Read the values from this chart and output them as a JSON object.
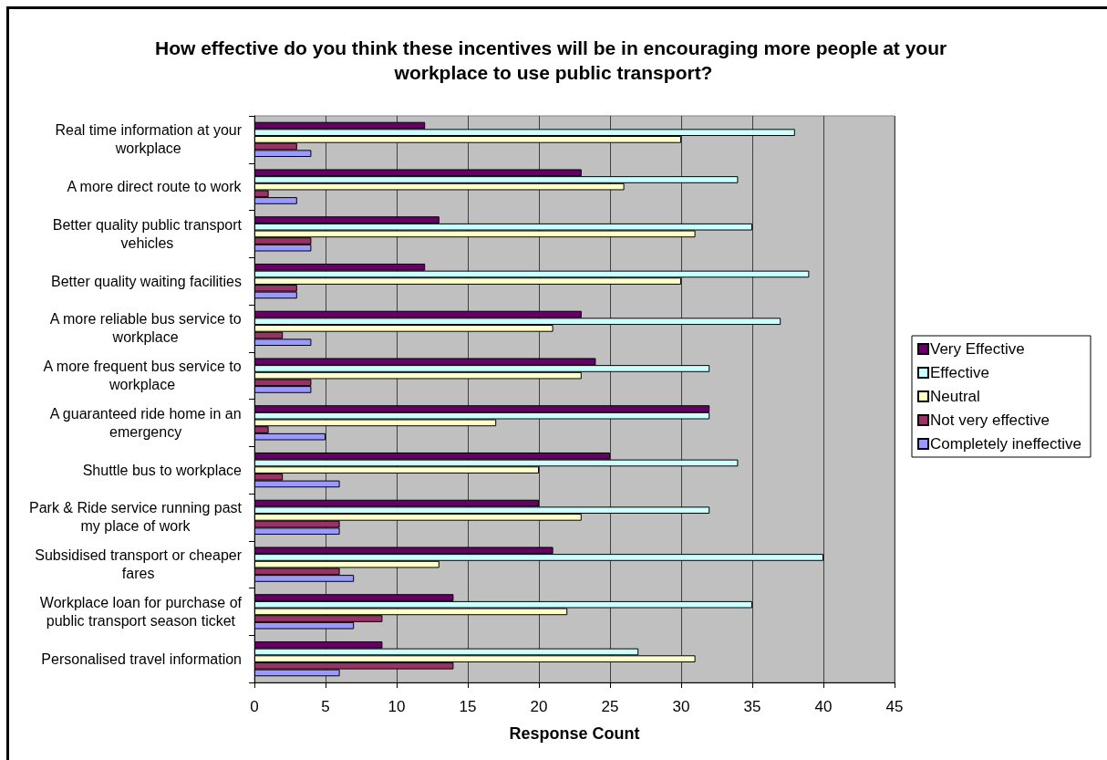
{
  "chart_data": {
    "type": "bar",
    "orientation": "horizontal",
    "title": "How effective do you think these incentives will be in encouraging more people at your workplace to use public transport?",
    "xlabel": "Response Count",
    "categories": [
      "Real time information at your workplace",
      "A more direct route to work",
      "Better quality public transport vehicles",
      "Better quality waiting facilities",
      "A more reliable bus service to workplace",
      "A more frequent bus service to workplace",
      "A guaranteed ride home in an emergency",
      "Shuttle bus to workplace",
      "Park & Ride service running past my place of work",
      "Subsidised transport or cheaper fares",
      "Workplace loan for purchase of public transport season ticket",
      "Personalised travel information"
    ],
    "series": [
      {
        "name": "Very Effective",
        "color": "#660066",
        "values": [
          12,
          23,
          13,
          12,
          23,
          24,
          32,
          25,
          20,
          21,
          14,
          9
        ]
      },
      {
        "name": "Effective",
        "color": "#ccffff",
        "values": [
          38,
          34,
          35,
          39,
          37,
          32,
          32,
          34,
          32,
          40,
          35,
          27
        ]
      },
      {
        "name": "Neutral",
        "color": "#ffffcc",
        "values": [
          30,
          26,
          31,
          30,
          21,
          23,
          17,
          20,
          23,
          13,
          22,
          31
        ]
      },
      {
        "name": "Not very effective",
        "color": "#993366",
        "values": [
          3,
          1,
          4,
          3,
          2,
          4,
          1,
          2,
          6,
          6,
          9,
          14
        ]
      },
      {
        "name": "Completely ineffective",
        "color": "#9999ff",
        "values": [
          4,
          3,
          4,
          3,
          4,
          4,
          5,
          6,
          6,
          7,
          7,
          6
        ]
      }
    ],
    "xlim": [
      0,
      45
    ],
    "xticks": [
      0,
      5,
      10,
      15,
      20,
      25,
      30,
      35,
      40,
      45
    ],
    "grid": "x",
    "legend": "right"
  }
}
